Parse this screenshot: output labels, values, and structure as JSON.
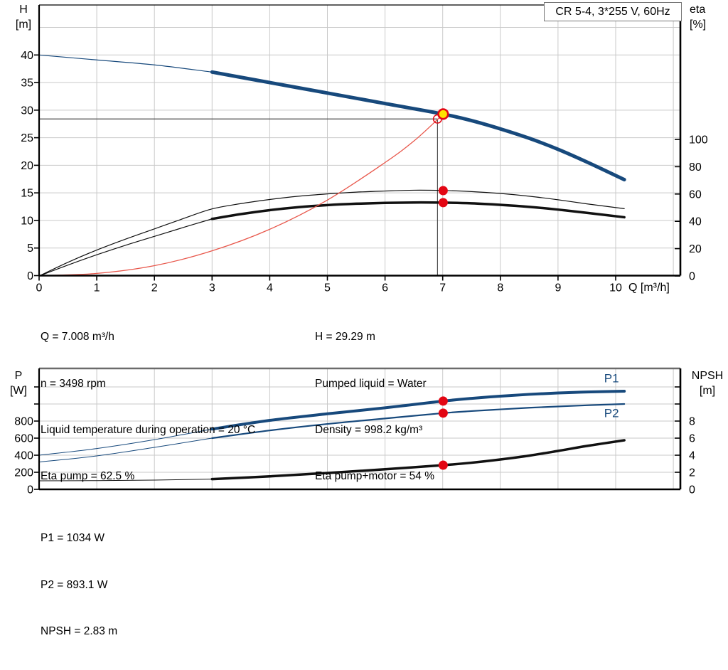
{
  "title": "CR 5-4, 3*255 V, 60Hz",
  "info": {
    "top_left": [
      "Q = 7.008 m³/h",
      "n = 3498 rpm",
      "Liquid temperature during operation = 20 °C",
      "Eta pump = 62.5 %"
    ],
    "top_right": [
      "H = 29.29 m",
      "Pumped liquid = Water",
      "Density = 998.2 kg/m³",
      "Eta pump+motor = 54 %"
    ],
    "bottom": [
      "P1 = 1034 W",
      "P2 = 893.1 W",
      "NPSH = 2.83 m"
    ]
  },
  "colors": {
    "curve_blue": "#17497c",
    "curve_black": "#111111",
    "system_red": "#e8574b",
    "marker_red": "#e30613",
    "duty_yellow": "#ffe100",
    "grid": "#c9c9c9",
    "crosshair": "#4d4d4d"
  },
  "chart_data": [
    {
      "type": "line",
      "title": "CR 5-4, 3*255 V, 60Hz",
      "x_axis": {
        "label": "Q [m³/h]",
        "min": 0,
        "max": 11.1,
        "ticks": [
          0,
          1,
          2,
          3,
          4,
          5,
          6,
          7,
          8,
          9,
          10
        ],
        "gridlines": [
          1,
          2,
          3,
          4,
          5,
          6,
          7,
          8,
          9,
          10,
          11
        ]
      },
      "y_left": {
        "label": [
          "H",
          "[m]"
        ],
        "min": 0,
        "max": 49,
        "ticks": [
          0,
          5,
          10,
          15,
          20,
          25,
          30,
          35,
          40
        ],
        "gridlines": [
          5,
          10,
          15,
          20,
          25,
          30,
          35,
          40,
          45
        ]
      },
      "y_right": {
        "label": [
          "eta",
          "[%]"
        ],
        "min": 0,
        "max": 100,
        "ticks": [
          0,
          20,
          40,
          60,
          80,
          100
        ]
      },
      "series": [
        {
          "name": "pump-curve-out-of-range",
          "axis": "left",
          "color": "curve_blue",
          "width": 1.2,
          "points": [
            [
              0,
              40
            ],
            [
              1,
              39.1
            ],
            [
              2,
              38.2
            ],
            [
              3,
              36.9
            ]
          ]
        },
        {
          "name": "pump-curve",
          "axis": "left",
          "color": "curve_blue",
          "width": 5,
          "points": [
            [
              3,
              36.9
            ],
            [
              4,
              35.0
            ],
            [
              5,
              33.1
            ],
            [
              6,
              31.2
            ],
            [
              7,
              29.3
            ],
            [
              7.5,
              28.1
            ],
            [
              8,
              26.6
            ],
            [
              8.5,
              24.9
            ],
            [
              9,
              22.9
            ],
            [
              9.5,
              20.6
            ],
            [
              10.15,
              17.4
            ]
          ]
        },
        {
          "name": "eta-pump-curve",
          "axis": "right",
          "color": "curve_black",
          "width": 1.2,
          "points": [
            [
              0,
              0
            ],
            [
              0.5,
              10
            ],
            [
              1,
              19
            ],
            [
              1.5,
              27
            ],
            [
              2,
              34.5
            ],
            [
              2.5,
              42
            ],
            [
              3,
              49.1
            ],
            [
              3.5,
              53
            ],
            [
              4,
              56
            ],
            [
              4.5,
              58.4
            ],
            [
              5,
              60.1
            ],
            [
              5.5,
              61.4
            ],
            [
              6,
              62.2
            ],
            [
              6.5,
              62.8
            ],
            [
              7,
              62.6
            ],
            [
              7.5,
              61.8
            ],
            [
              8,
              60.4
            ],
            [
              8.5,
              58.4
            ],
            [
              9,
              55.8
            ],
            [
              9.5,
              52.8
            ],
            [
              10.15,
              49.3
            ]
          ]
        },
        {
          "name": "eta-pump-motor-out-of-range",
          "axis": "right",
          "color": "curve_black",
          "width": 1.2,
          "points": [
            [
              0,
              0
            ],
            [
              0.5,
              8
            ],
            [
              1,
              15.5
            ],
            [
              1.5,
              22.5
            ],
            [
              2,
              29
            ],
            [
              2.5,
              35.5
            ],
            [
              3,
              41.8
            ]
          ]
        },
        {
          "name": "eta-pump-motor-curve",
          "axis": "right",
          "color": "curve_black",
          "width": 3.5,
          "points": [
            [
              3,
              41.8
            ],
            [
              3.5,
              45.3
            ],
            [
              4,
              48.2
            ],
            [
              4.5,
              50.4
            ],
            [
              5,
              51.9
            ],
            [
              5.5,
              52.9
            ],
            [
              6,
              53.5
            ],
            [
              6.5,
              53.8
            ],
            [
              7,
              53.7
            ],
            [
              7.5,
              53.2
            ],
            [
              8,
              52.1
            ],
            [
              8.5,
              50.6
            ],
            [
              9,
              48.6
            ],
            [
              9.5,
              46.2
            ],
            [
              10.15,
              43
            ]
          ]
        },
        {
          "name": "system-curve",
          "axis": "left",
          "color": "system_red",
          "width": 1.3,
          "points": [
            [
              0,
              0
            ],
            [
              1,
              0.4
            ],
            [
              2,
              1.8
            ],
            [
              3,
              4.5
            ],
            [
              4,
              8.4
            ],
            [
              5,
              13.7
            ],
            [
              6,
              20.5
            ],
            [
              6.5,
              24.4
            ],
            [
              6.91,
              28.3
            ],
            [
              7.008,
              29.29
            ]
          ]
        }
      ],
      "crosshair": {
        "q": 6.91,
        "h": 28.4
      },
      "markers": [
        {
          "name": "requested-duty-point",
          "axis": "left",
          "q": 6.91,
          "v": 28.4,
          "r": 5.8,
          "fill": "none",
          "stroke": "marker_red",
          "stroke_width": 1.5,
          "interactable": true
        },
        {
          "name": "duty-point",
          "axis": "left",
          "q": 7.008,
          "v": 29.29,
          "r": 6.8,
          "fill": "duty_yellow",
          "stroke": "marker_red",
          "stroke_width": 2.6,
          "interactable": true
        },
        {
          "name": "eta-pump-duty-point",
          "axis": "right",
          "q": 7.008,
          "v": 62.5,
          "r": 6.5,
          "fill": "marker_red",
          "interactable": false
        },
        {
          "name": "eta-pump-motor-duty-point",
          "axis": "right",
          "q": 7.008,
          "v": 53.7,
          "r": 6.5,
          "fill": "marker_red",
          "interactable": false
        }
      ]
    },
    {
      "type": "line",
      "x_axis": {
        "min": 0,
        "max": 11.1,
        "ticks": [],
        "gridlines": [
          1,
          2,
          3,
          4,
          5,
          6,
          7,
          8,
          9,
          10,
          11
        ]
      },
      "y_left": {
        "label": [
          "P",
          "[W]"
        ],
        "min": 0,
        "max": 1416,
        "ticks": [
          0,
          200,
          400,
          600,
          800
        ],
        "tick_marks": [
          0,
          200,
          400,
          600,
          800,
          1000,
          1200
        ],
        "gridlines": [
          200,
          400,
          600,
          800,
          1000,
          1200
        ]
      },
      "y_right": {
        "label": [
          "NPSH",
          "[m]"
        ],
        "min": 0,
        "max": 14.16,
        "ticks": [
          0,
          2,
          4,
          6,
          8
        ],
        "tick_marks": [
          0,
          2,
          4,
          6,
          8,
          10,
          12
        ]
      },
      "series": [
        {
          "name": "p1-out-of-range",
          "axis": "left",
          "color": "curve_blue",
          "width": 1,
          "points": [
            [
              0,
              400
            ],
            [
              1,
              478
            ],
            [
              2,
              582
            ],
            [
              3,
              706
            ]
          ]
        },
        {
          "name": "p1-curve",
          "axis": "left",
          "color": "curve_blue",
          "width": 4,
          "points": [
            [
              3,
              706
            ],
            [
              4,
              808
            ],
            [
              5,
              885
            ],
            [
              6,
              955
            ],
            [
              7.008,
              1034
            ],
            [
              7.5,
              1066
            ],
            [
              8,
              1092
            ],
            [
              8.5,
              1113
            ],
            [
              9,
              1129
            ],
            [
              9.5,
              1141
            ],
            [
              10.15,
              1150
            ]
          ]
        },
        {
          "name": "p2-out-of-range",
          "axis": "left",
          "color": "curve_blue",
          "width": 1,
          "points": [
            [
              0,
              320
            ],
            [
              1,
              392
            ],
            [
              2,
              492
            ],
            [
              3,
              600
            ]
          ]
        },
        {
          "name": "p2-curve",
          "axis": "left",
          "color": "curve_blue",
          "width": 2.2,
          "points": [
            [
              3,
              600
            ],
            [
              4,
              690
            ],
            [
              5,
              766
            ],
            [
              6,
              830
            ],
            [
              7.008,
              893
            ],
            [
              7.5,
              917
            ],
            [
              8,
              937
            ],
            [
              8.5,
              956
            ],
            [
              9,
              971
            ],
            [
              9.5,
              985
            ],
            [
              10.15,
              1000
            ]
          ]
        },
        {
          "name": "npsh-out-of-range",
          "axis": "right",
          "color": "curve_black",
          "width": 1,
          "points": [
            [
              0,
              1.0
            ],
            [
              1,
              1.02
            ],
            [
              2,
              1.08
            ],
            [
              3,
              1.2
            ]
          ]
        },
        {
          "name": "npsh-curve",
          "axis": "right",
          "color": "curve_black",
          "width": 3.5,
          "points": [
            [
              3,
              1.2
            ],
            [
              4,
              1.52
            ],
            [
              5,
              1.92
            ],
            [
              6,
              2.35
            ],
            [
              7.008,
              2.83
            ],
            [
              7.5,
              3.12
            ],
            [
              8,
              3.5
            ],
            [
              8.5,
              3.95
            ],
            [
              9,
              4.5
            ],
            [
              9.5,
              5.08
            ],
            [
              10.15,
              5.75
            ]
          ]
        }
      ],
      "markers": [
        {
          "name": "p1-duty-point",
          "axis": "left",
          "q": 7.008,
          "v": 1034,
          "r": 6.5,
          "fill": "marker_red",
          "interactable": false
        },
        {
          "name": "p2-duty-point",
          "axis": "left",
          "q": 7.008,
          "v": 893.1,
          "r": 6.5,
          "fill": "marker_red",
          "interactable": false
        },
        {
          "name": "npsh-duty-point",
          "axis": "right",
          "q": 7.008,
          "v": 2.83,
          "r": 6.5,
          "fill": "marker_red",
          "interactable": false
        }
      ],
      "curve_labels": [
        {
          "text": "P1",
          "axis": "left",
          "q": 9.8,
          "v": 1255
        },
        {
          "text": "P2",
          "axis": "left",
          "q": 9.8,
          "v": 845
        }
      ]
    }
  ]
}
